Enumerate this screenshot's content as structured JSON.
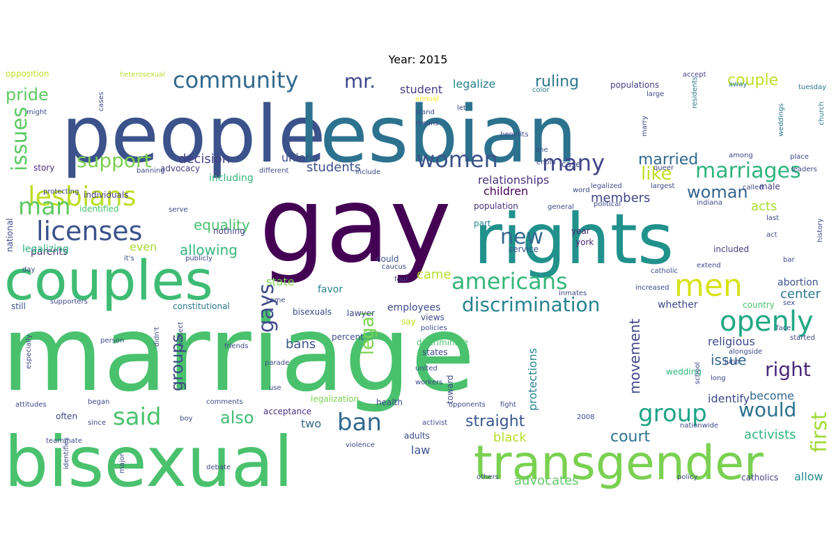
{
  "chart_data": {
    "type": "wordcloud",
    "title": "Year: 2015",
    "palette": "viridis",
    "words": [
      {
        "text": "marriage",
        "weight": 100,
        "color": "#4ac16d"
      },
      {
        "text": "gay",
        "weight": 88,
        "color": "#440154"
      },
      {
        "text": "people",
        "weight": 78,
        "color": "#3b528b"
      },
      {
        "text": "lesbian",
        "weight": 74,
        "color": "#2c728e"
      },
      {
        "text": "rights",
        "weight": 70,
        "color": "#21918c"
      },
      {
        "text": "bisexual",
        "weight": 66,
        "color": "#4ac16d"
      },
      {
        "text": "couples",
        "weight": 56,
        "color": "#3fbc73"
      },
      {
        "text": "transgender",
        "weight": 48,
        "color": "#7ad151"
      },
      {
        "text": "men",
        "weight": 30,
        "color": "#d8e219"
      },
      {
        "text": "openly",
        "weight": 28,
        "color": "#22a884"
      },
      {
        "text": "lesbians",
        "weight": 26,
        "color": "#bddf26"
      },
      {
        "text": "licenses",
        "weight": 26,
        "color": "#3b528b"
      },
      {
        "text": "community",
        "weight": 24,
        "color": "#31688e"
      },
      {
        "text": "americans",
        "weight": 24,
        "color": "#35b779"
      },
      {
        "text": "discrimination",
        "weight": 22,
        "color": "#26828e"
      },
      {
        "text": "marriages",
        "weight": 22,
        "color": "#2fb47c"
      },
      {
        "text": "women",
        "weight": 22,
        "color": "#3b528b"
      },
      {
        "text": "many",
        "weight": 22,
        "color": "#414487"
      },
      {
        "text": "said",
        "weight": 22,
        "color": "#4ac16d"
      },
      {
        "text": "ban",
        "weight": 22,
        "color": "#31688e"
      },
      {
        "text": "group",
        "weight": 22,
        "color": "#20a386"
      },
      {
        "text": "man",
        "weight": 22,
        "color": "#5ec962"
      },
      {
        "text": "issues",
        "weight": 22,
        "color": "#5ec962"
      },
      {
        "text": "support",
        "weight": 20,
        "color": "#7ad151"
      },
      {
        "text": "gays",
        "weight": 20,
        "color": "#3e4989"
      },
      {
        "text": "first",
        "weight": 20,
        "color": "#a0da39"
      },
      {
        "text": "right",
        "weight": 20,
        "color": "#482878"
      },
      {
        "text": "would",
        "weight": 20,
        "color": "#2d708e"
      },
      {
        "text": "new",
        "weight": 20,
        "color": "#31688e"
      },
      {
        "text": "mr.",
        "weight": 20,
        "color": "#3e4989"
      },
      {
        "text": "legal",
        "weight": 18,
        "color": "#7ad151"
      },
      {
        "text": "like",
        "weight": 18,
        "color": "#c2df23"
      },
      {
        "text": "woman",
        "weight": 18,
        "color": "#33638d"
      },
      {
        "text": "pride",
        "weight": 18,
        "color": "#5ec962"
      },
      {
        "text": "groups",
        "weight": 18,
        "color": "#3e4989"
      },
      {
        "text": "also",
        "weight": 18,
        "color": "#3fbc73"
      },
      {
        "text": "straight",
        "weight": 16,
        "color": "#39568c"
      },
      {
        "text": "court",
        "weight": 16,
        "color": "#2c728e"
      },
      {
        "text": "movement",
        "weight": 16,
        "color": "#404688"
      },
      {
        "text": "married",
        "weight": 16,
        "color": "#31688e"
      },
      {
        "text": "ruling",
        "weight": 16,
        "color": "#2a788e"
      },
      {
        "text": "couple",
        "weight": 16,
        "color": "#bddf26"
      },
      {
        "text": "equality",
        "weight": 16,
        "color": "#4ac16d"
      },
      {
        "text": "allowing",
        "weight": 16,
        "color": "#35b779"
      },
      {
        "text": "students",
        "weight": 14,
        "color": "#3b528b"
      },
      {
        "text": "issue",
        "weight": 14,
        "color": "#31688e"
      },
      {
        "text": "activists",
        "weight": 14,
        "color": "#2fb47c"
      },
      {
        "text": "advocates",
        "weight": 14,
        "color": "#5ec962"
      },
      {
        "text": "black",
        "weight": 14,
        "color": "#b5de2b"
      },
      {
        "text": "decision",
        "weight": 14,
        "color": "#433e85"
      },
      {
        "text": "relationships",
        "weight": 14,
        "color": "#46327e"
      },
      {
        "text": "members",
        "weight": 14,
        "color": "#414487"
      },
      {
        "text": "acts",
        "weight": 14,
        "color": "#a8db34"
      },
      {
        "text": "center",
        "weight": 14,
        "color": "#2a788e"
      },
      {
        "text": "bans",
        "weight": 14,
        "color": "#3b528b"
      },
      {
        "text": "came",
        "weight": 14,
        "color": "#b5de2b"
      },
      {
        "text": "unions",
        "weight": 12,
        "color": "#3e4989"
      },
      {
        "text": "children",
        "weight": 12,
        "color": "#440154"
      },
      {
        "text": "legalize",
        "weight": 12,
        "color": "#26828e"
      },
      {
        "text": "student",
        "weight": 12,
        "color": "#433e85"
      },
      {
        "text": "parents",
        "weight": 12,
        "color": "#472c7a"
      },
      {
        "text": "legalizing",
        "weight": 12,
        "color": "#29af7f"
      },
      {
        "text": "even",
        "weight": 12,
        "color": "#a8db34"
      },
      {
        "text": "state",
        "weight": 12,
        "color": "#7ad151"
      },
      {
        "text": "favor",
        "weight": 12,
        "color": "#25848e"
      },
      {
        "text": "protections",
        "weight": 12,
        "color": "#25848e"
      },
      {
        "text": "two",
        "weight": 12,
        "color": "#31688e"
      },
      {
        "text": "become",
        "weight": 12,
        "color": "#31688e"
      },
      {
        "text": "identify",
        "weight": 12,
        "color": "#3e4989"
      },
      {
        "text": "religious",
        "weight": 12,
        "color": "#3e4989"
      },
      {
        "text": "whether",
        "weight": 12,
        "color": "#3e4989"
      },
      {
        "text": "employees",
        "weight": 12,
        "color": "#3e4989"
      },
      {
        "text": "law",
        "weight": 12,
        "color": "#3b528b"
      },
      {
        "text": "allow",
        "weight": 12,
        "color": "#238a8d"
      },
      {
        "text": "abortion",
        "weight": 12,
        "color": "#3b528b"
      },
      {
        "text": "including",
        "weight": 11,
        "color": "#35b779"
      },
      {
        "text": "nothing",
        "weight": 11,
        "color": "#433e85"
      },
      {
        "text": "constitutional",
        "weight": 11,
        "color": "#2a788e"
      },
      {
        "text": "populations",
        "weight": 11,
        "color": "#433e85"
      },
      {
        "text": "population",
        "weight": 11,
        "color": "#46327e"
      },
      {
        "text": "service",
        "weight": 11,
        "color": "#3b528b"
      },
      {
        "text": "case",
        "weight": 11,
        "color": "#3e4989"
      },
      {
        "text": "could",
        "weight": 11,
        "color": "#3b528b"
      },
      {
        "text": "say",
        "weight": 11,
        "color": "#c2df23"
      },
      {
        "text": "often",
        "weight": 11,
        "color": "#414487"
      },
      {
        "text": "acceptance",
        "weight": 11,
        "color": "#46327e"
      },
      {
        "text": "health",
        "weight": 11,
        "color": "#3e4989"
      },
      {
        "text": "states",
        "weight": 11,
        "color": "#3e4989"
      },
      {
        "text": "discriminate",
        "weight": 11,
        "color": "#4ac16d"
      },
      {
        "text": "wedding",
        "weight": 10,
        "color": "#2fb47c"
      },
      {
        "text": "catholics",
        "weight": 10,
        "color": "#433e85"
      },
      {
        "text": "legalization",
        "weight": 10,
        "color": "#7ad151"
      },
      {
        "text": "included",
        "weight": 10,
        "color": "#433e85"
      },
      {
        "text": "country",
        "weight": 10,
        "color": "#4ac16d"
      },
      {
        "text": "bisexuals",
        "weight": 10,
        "color": "#3e4989"
      },
      {
        "text": "still",
        "weight": 10,
        "color": "#3b528b"
      },
      {
        "text": "story",
        "weight": 10,
        "color": "#472c7a"
      },
      {
        "text": "national",
        "weight": 10,
        "color": "#3e4989"
      },
      {
        "text": "individuals",
        "weight": 10,
        "color": "#433e85"
      },
      {
        "text": "identified",
        "weight": 10,
        "color": "#4ac16d"
      },
      {
        "text": "advocacy",
        "weight": 10,
        "color": "#433e85"
      },
      {
        "text": "part",
        "weight": 10,
        "color": "#238a8d"
      },
      {
        "text": "male",
        "weight": 10,
        "color": "#433e85"
      },
      {
        "text": "year",
        "weight": 10,
        "color": "#482878"
      },
      {
        "text": "york",
        "weight": 10,
        "color": "#482878"
      },
      {
        "text": "percent",
        "weight": 10,
        "color": "#3e4989"
      },
      {
        "text": "toward",
        "weight": 10,
        "color": "#3e4989"
      },
      {
        "text": "adults",
        "weight": 10,
        "color": "#3e4989"
      },
      {
        "text": "lawyer",
        "weight": 10,
        "color": "#3e4989"
      },
      {
        "text": "views",
        "weight": 10,
        "color": "#3e4989"
      },
      {
        "text": "opposition",
        "weight": 10,
        "color": "#bddf26"
      },
      {
        "text": "heterosexual",
        "weight": 8,
        "color": "#b5de2b"
      },
      {
        "text": "accept",
        "weight": 8,
        "color": "#433e85"
      },
      {
        "text": "tuesday",
        "weight": 8,
        "color": "#2a788e"
      },
      {
        "text": "church",
        "weight": 8,
        "color": "#2a788e"
      },
      {
        "text": "weddings",
        "weight": 8,
        "color": "#2a788e"
      },
      {
        "text": "residents",
        "weight": 8,
        "color": "#2a788e"
      },
      {
        "text": "away",
        "weight": 8,
        "color": "#2a788e"
      },
      {
        "text": "color",
        "weight": 8,
        "color": "#2a788e"
      },
      {
        "text": "annual",
        "weight": 8,
        "color": "#fde725"
      },
      {
        "text": "stand",
        "weight": 8,
        "color": "#3e4989"
      },
      {
        "text": "means",
        "weight": 8,
        "color": "#3e4989"
      },
      {
        "text": "let",
        "weight": 8,
        "color": "#3e4989"
      },
      {
        "text": "large",
        "weight": 8,
        "color": "#3e4989"
      },
      {
        "text": "marry",
        "weight": 8,
        "color": "#3e4989"
      },
      {
        "text": "benefits",
        "weight": 8,
        "color": "#3e4989"
      },
      {
        "text": "one",
        "weight": 8,
        "color": "#3e4989"
      },
      {
        "text": "enola",
        "weight": 8,
        "color": "#3e4989"
      },
      {
        "text": "queer",
        "weight": 8,
        "color": "#3e4989"
      },
      {
        "text": "among",
        "weight": 8,
        "color": "#3e4989"
      },
      {
        "text": "place",
        "weight": 8,
        "color": "#3e4989"
      },
      {
        "text": "leaders",
        "weight": 8,
        "color": "#3e4989"
      },
      {
        "text": "called",
        "weight": 8,
        "color": "#3e4989"
      },
      {
        "text": "legalized",
        "weight": 8,
        "color": "#3e4989"
      },
      {
        "text": "largest",
        "weight": 8,
        "color": "#3e4989"
      },
      {
        "text": "word",
        "weight": 8,
        "color": "#3e4989"
      },
      {
        "text": "political",
        "weight": 8,
        "color": "#3e4989"
      },
      {
        "text": "general",
        "weight": 8,
        "color": "#3e4989"
      },
      {
        "text": "indiana",
        "weight": 8,
        "color": "#3e4989"
      },
      {
        "text": "last",
        "weight": 8,
        "color": "#3e4989"
      },
      {
        "text": "act",
        "weight": 8,
        "color": "#3e4989"
      },
      {
        "text": "history",
        "weight": 8,
        "color": "#3e4989"
      },
      {
        "text": "bar",
        "weight": 8,
        "color": "#3e4989"
      },
      {
        "text": "extend",
        "weight": 8,
        "color": "#3e4989"
      },
      {
        "text": "catholic",
        "weight": 8,
        "color": "#3e4989"
      },
      {
        "text": "increased",
        "weight": 8,
        "color": "#3e4989"
      },
      {
        "text": "inmates",
        "weight": 8,
        "color": "#3e4989"
      },
      {
        "text": "face",
        "weight": 8,
        "color": "#3e4989"
      },
      {
        "text": "started",
        "weight": 8,
        "color": "#3e4989"
      },
      {
        "text": "sex",
        "weight": 8,
        "color": "#3e4989"
      },
      {
        "text": "alongside",
        "weight": 8,
        "color": "#3e4989"
      },
      {
        "text": "june",
        "weight": 8,
        "color": "#3e4989"
      },
      {
        "text": "long",
        "weight": 8,
        "color": "#3e4989"
      },
      {
        "text": "school",
        "weight": 8,
        "color": "#3e4989"
      },
      {
        "text": "nationwide",
        "weight": 8,
        "color": "#3e4989"
      },
      {
        "text": "policy",
        "weight": 8,
        "color": "#3e4989"
      },
      {
        "text": "others",
        "weight": 8,
        "color": "#3e4989"
      },
      {
        "text": "fight",
        "weight": 8,
        "color": "#3e4989"
      },
      {
        "text": "opponents",
        "weight": 8,
        "color": "#3e4989"
      },
      {
        "text": "2008",
        "weight": 8,
        "color": "#3e4989"
      },
      {
        "text": "activist",
        "weight": 8,
        "color": "#3e4989"
      },
      {
        "text": "united",
        "weight": 8,
        "color": "#3e4989"
      },
      {
        "text": "workers",
        "weight": 8,
        "color": "#3e4989"
      },
      {
        "text": "policies",
        "weight": 8,
        "color": "#3e4989"
      },
      {
        "text": "violence",
        "weight": 8,
        "color": "#3e4989"
      },
      {
        "text": "major",
        "weight": 8,
        "color": "#3e4989"
      },
      {
        "text": "debate",
        "weight": 8,
        "color": "#3e4989"
      },
      {
        "text": "identifies",
        "weight": 8,
        "color": "#3e4989"
      },
      {
        "text": "boy",
        "weight": 8,
        "color": "#3e4989"
      },
      {
        "text": "since",
        "weight": 8,
        "color": "#3e4989"
      },
      {
        "text": "began",
        "weight": 8,
        "color": "#3e4989"
      },
      {
        "text": "attitudes",
        "weight": 8,
        "color": "#3e4989"
      },
      {
        "text": "teammate",
        "weight": 8,
        "color": "#3e4989"
      },
      {
        "text": "use",
        "weight": 8,
        "color": "#3e4989"
      },
      {
        "text": "comments",
        "weight": 8,
        "color": "#3e4989"
      },
      {
        "text": "parade",
        "weight": 8,
        "color": "#3e4989"
      },
      {
        "text": "friends",
        "weight": 8,
        "color": "#3e4989"
      },
      {
        "text": "especially",
        "weight": 8,
        "color": "#3e4989"
      },
      {
        "text": "protect",
        "weight": 8,
        "color": "#3e4989"
      },
      {
        "text": "didn't",
        "weight": 8,
        "color": "#3e4989"
      },
      {
        "text": "supporters",
        "weight": 8,
        "color": "#3e4989"
      },
      {
        "text": "caucus",
        "weight": 8,
        "color": "#3e4989"
      },
      {
        "text": "four",
        "weight": 8,
        "color": "#3e4989"
      },
      {
        "text": "publicly",
        "weight": 8,
        "color": "#3e4989"
      },
      {
        "text": "day",
        "weight": 8,
        "color": "#3e4989"
      },
      {
        "text": "serve",
        "weight": 8,
        "color": "#3e4989"
      },
      {
        "text": "it's",
        "weight": 8,
        "color": "#3e4989"
      },
      {
        "text": "protecting",
        "weight": 8,
        "color": "#3e4989"
      },
      {
        "text": "banning",
        "weight": 8,
        "color": "#3e4989"
      },
      {
        "text": "different",
        "weight": 8,
        "color": "#3e4989"
      },
      {
        "text": "include",
        "weight": 8,
        "color": "#3e4989"
      },
      {
        "text": "come",
        "weight": 8,
        "color": "#3e4989"
      },
      {
        "text": "cases",
        "weight": 8,
        "color": "#3e4989"
      },
      {
        "text": "might",
        "weight": 8,
        "color": "#3e4989"
      },
      {
        "text": "person",
        "weight": 8,
        "color": "#3e4989"
      }
    ]
  }
}
